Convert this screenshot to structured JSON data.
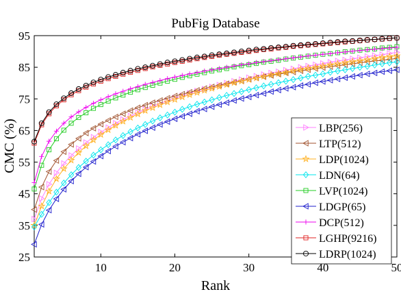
{
  "chart_data": {
    "type": "line",
    "title": "PubFig Database",
    "xlabel": "Rank",
    "ylabel": "CMC (%)",
    "xlim": [
      1,
      50
    ],
    "ylim": [
      25,
      95
    ],
    "xticks": [
      10,
      20,
      30,
      40,
      50
    ],
    "yticks": [
      25,
      35,
      45,
      55,
      65,
      75,
      85,
      95
    ],
    "grid": false,
    "legend_position": "bottom-right",
    "x": [
      1,
      2,
      3,
      4,
      5,
      6,
      7,
      8,
      9,
      10,
      11,
      12,
      13,
      14,
      15,
      16,
      17,
      18,
      19,
      20,
      21,
      22,
      23,
      24,
      25,
      26,
      27,
      28,
      29,
      30,
      31,
      32,
      33,
      34,
      35,
      36,
      37,
      38,
      39,
      40,
      41,
      42,
      43,
      44,
      45,
      46,
      47,
      48,
      49,
      50
    ],
    "series": [
      {
        "name": "LBP(256)",
        "color": "#ff80ff",
        "marker": "triangle-right",
        "values": [
          37.0,
          43.5,
          48.0,
          51.6,
          54.6,
          57.1,
          59.3,
          61.2,
          62.9,
          64.5,
          65.9,
          67.3,
          68.5,
          69.6,
          70.7,
          71.7,
          72.7,
          73.6,
          74.4,
          75.3,
          76.0,
          76.8,
          77.5,
          78.1,
          78.8,
          79.4,
          80.0,
          80.6,
          81.1,
          81.7,
          82.2,
          82.7,
          83.2,
          83.6,
          84.1,
          84.5,
          85.0,
          85.4,
          85.8,
          86.2,
          86.6,
          87.0,
          87.3,
          87.7,
          88.0,
          88.4,
          88.7,
          89.0,
          89.4,
          89.7
        ]
      },
      {
        "name": "LTP(512)",
        "color": "#a0522d",
        "marker": "triangle-left",
        "values": [
          40.0,
          47.1,
          52.0,
          55.5,
          58.3,
          60.6,
          62.5,
          64.2,
          65.7,
          67.0,
          68.2,
          69.3,
          70.3,
          71.3,
          72.2,
          73.0,
          73.8,
          74.5,
          75.2,
          75.9,
          76.5,
          77.1,
          77.7,
          78.3,
          78.8,
          79.3,
          79.8,
          80.3,
          80.7,
          81.2,
          81.6,
          82.0,
          82.4,
          82.8,
          83.2,
          83.5,
          83.9,
          84.2,
          84.6,
          84.9,
          85.2,
          85.5,
          85.8,
          86.1,
          86.4,
          86.7,
          87.0,
          87.2,
          87.5,
          87.8
        ]
      },
      {
        "name": "LDP(1024)",
        "color": "#ffb020",
        "marker": "star",
        "values": [
          35.0,
          41.1,
          45.8,
          49.7,
          52.9,
          55.6,
          58.0,
          60.1,
          62.0,
          63.7,
          65.2,
          66.6,
          67.9,
          69.1,
          70.2,
          71.3,
          72.2,
          73.1,
          74.0,
          74.8,
          75.6,
          76.3,
          77.0,
          77.7,
          78.3,
          78.9,
          79.5,
          80.1,
          80.6,
          81.1,
          81.6,
          82.1,
          82.6,
          83.0,
          83.4,
          83.9,
          84.3,
          84.7,
          85.0,
          85.4,
          85.8,
          86.1,
          86.5,
          86.8,
          87.1,
          87.4,
          87.8,
          88.1,
          88.4,
          88.6
        ]
      },
      {
        "name": "LDN(64)",
        "color": "#00e5ee",
        "marker": "diamond",
        "values": [
          34.5,
          38.5,
          42.2,
          45.5,
          48.4,
          51.0,
          53.3,
          55.3,
          57.2,
          58.9,
          60.5,
          62.0,
          63.4,
          64.6,
          65.8,
          66.9,
          68.0,
          69.0,
          69.9,
          70.8,
          71.7,
          72.5,
          73.3,
          74.0,
          74.7,
          75.4,
          76.1,
          76.7,
          77.3,
          77.9,
          78.5,
          79.1,
          79.6,
          80.1,
          80.6,
          81.1,
          81.6,
          82.1,
          82.5,
          82.9,
          83.4,
          83.8,
          84.2,
          84.6,
          85.0,
          85.3,
          85.7,
          86.1,
          86.4,
          86.7
        ]
      },
      {
        "name": "LVP(1024)",
        "color": "#22cc22",
        "marker": "square",
        "values": [
          46.5,
          54.0,
          58.9,
          62.4,
          65.1,
          67.3,
          69.1,
          70.6,
          72.0,
          73.2,
          74.3,
          75.3,
          76.2,
          77.1,
          77.9,
          78.6,
          79.3,
          80.0,
          80.6,
          81.2,
          81.8,
          82.3,
          82.8,
          83.3,
          83.8,
          84.2,
          84.6,
          85.1,
          85.5,
          85.8,
          86.2,
          86.6,
          86.9,
          87.2,
          87.6,
          87.9,
          88.2,
          88.5,
          88.8,
          89.1,
          89.3,
          89.6,
          89.9,
          90.1,
          90.4,
          90.6,
          90.8,
          91.1,
          91.3,
          91.5
        ]
      },
      {
        "name": "LDGP(65)",
        "color": "#1c1ccc",
        "marker": "triangle-left",
        "values": [
          29.0,
          35.3,
          39.8,
          43.4,
          46.4,
          49.0,
          51.3,
          53.4,
          55.2,
          56.9,
          58.5,
          60.0,
          61.3,
          62.6,
          63.8,
          64.9,
          65.9,
          66.9,
          67.8,
          68.7,
          69.5,
          70.3,
          71.1,
          71.8,
          72.5,
          73.2,
          73.8,
          74.5,
          75.1,
          75.6,
          76.2,
          76.7,
          77.3,
          77.8,
          78.3,
          78.7,
          79.2,
          79.6,
          80.1,
          80.5,
          80.9,
          81.3,
          81.7,
          82.1,
          82.5,
          82.9,
          83.2,
          83.6,
          83.9,
          84.2
        ]
      },
      {
        "name": "DCP(512)",
        "color": "#ee00ee",
        "marker": "plus",
        "values": [
          48.5,
          56.8,
          61.6,
          64.8,
          67.3,
          69.3,
          70.9,
          72.3,
          73.6,
          74.7,
          75.7,
          76.6,
          77.4,
          78.2,
          78.9,
          79.6,
          80.2,
          80.8,
          81.4,
          81.9,
          82.4,
          82.9,
          83.3,
          83.8,
          84.2,
          84.6,
          85.0,
          85.4,
          85.8,
          86.1,
          86.5,
          86.8,
          87.1,
          87.4,
          87.7,
          88.0,
          88.3,
          88.6,
          88.8,
          89.1,
          89.3,
          89.6,
          89.8,
          90.1,
          90.3,
          90.5,
          90.7,
          90.9,
          91.1,
          91.3
        ]
      },
      {
        "name": "LGHP(9216)",
        "color": "#e02020",
        "marker": "square",
        "values": [
          61.0,
          66.8,
          70.3,
          72.8,
          74.7,
          76.3,
          77.6,
          78.7,
          79.7,
          80.6,
          81.4,
          82.1,
          82.8,
          83.4,
          84.0,
          84.6,
          85.1,
          85.6,
          86.0,
          86.5,
          86.9,
          87.3,
          87.7,
          88.1,
          88.4,
          88.8,
          89.1,
          89.4,
          89.7,
          90.0,
          90.3,
          90.6,
          90.8,
          91.1,
          91.3,
          91.6,
          91.8,
          92.0,
          92.2,
          92.4,
          92.6,
          92.8,
          93.0,
          93.2,
          93.4,
          93.6,
          93.8,
          93.9,
          94.1,
          94.3
        ]
      },
      {
        "name": "LDRP(1024)",
        "color": "#000000",
        "marker": "circle",
        "values": [
          61.5,
          67.3,
          70.8,
          73.3,
          75.2,
          76.8,
          78.1,
          79.2,
          80.2,
          81.1,
          81.9,
          82.6,
          83.3,
          83.9,
          84.5,
          85.0,
          85.5,
          86.0,
          86.5,
          86.9,
          87.3,
          87.7,
          88.1,
          88.4,
          88.8,
          89.1,
          89.4,
          89.7,
          90.0,
          90.3,
          90.6,
          90.8,
          91.1,
          91.3,
          91.5,
          91.8,
          92.0,
          92.2,
          92.4,
          92.6,
          92.8,
          93.0,
          93.2,
          93.3,
          93.5,
          93.7,
          93.8,
          94.0,
          94.2,
          94.3
        ]
      }
    ]
  }
}
